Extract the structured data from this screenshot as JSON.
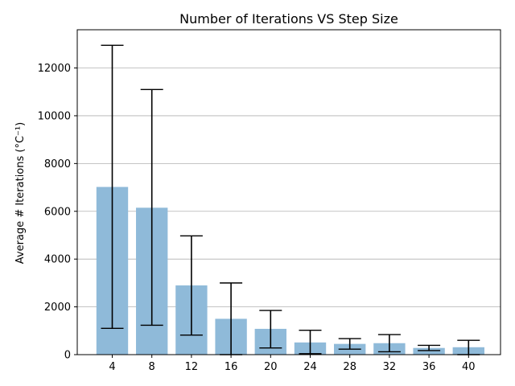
{
  "chart_data": {
    "type": "bar",
    "title": "Number of Iterations VS Step Size",
    "xlabel": "",
    "ylabel": "Average # Iterations (°C⁻¹)",
    "categories": [
      "4",
      "8",
      "12",
      "16",
      "20",
      "24",
      "28",
      "32",
      "36",
      "40"
    ],
    "values": [
      7020,
      6150,
      2900,
      1500,
      1080,
      510,
      450,
      480,
      280,
      310
    ],
    "error_low": [
      1100,
      1230,
      820,
      0,
      280,
      40,
      230,
      120,
      170,
      0
    ],
    "error_high": [
      12950,
      11100,
      4970,
      3000,
      1850,
      1020,
      670,
      840,
      390,
      600
    ],
    "ylim": [
      0,
      13600
    ],
    "yticks": [
      0,
      2000,
      4000,
      6000,
      8000,
      10000,
      12000
    ],
    "grid": "y",
    "bar_color": "#8fbad9",
    "error_color": "#000000"
  }
}
